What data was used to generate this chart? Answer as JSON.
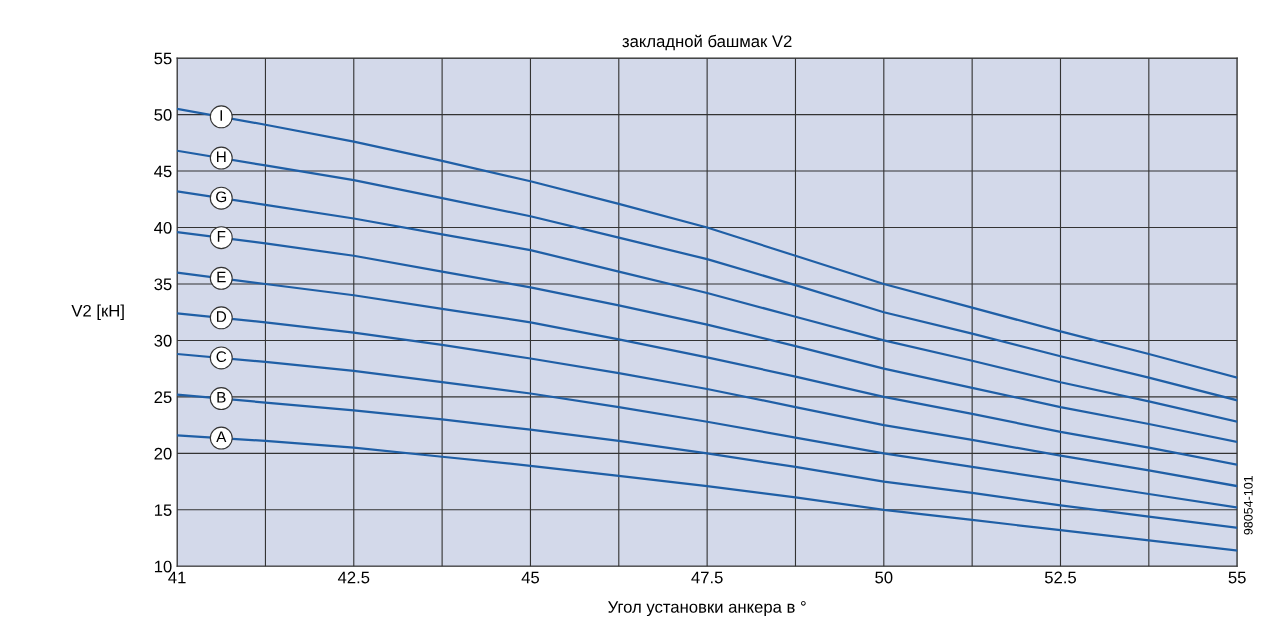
{
  "chart_data": {
    "type": "line",
    "title": "закладной башмак V2",
    "xlabel": "Угол установки анкера в °",
    "ylabel": "V2 [кН]",
    "categories": [
      "41",
      null,
      "42.5",
      null,
      "45",
      null,
      "47.5",
      null,
      "50",
      null,
      "52.5",
      null,
      "55"
    ],
    "ylim": [
      10,
      55
    ],
    "yticks": [
      10,
      15,
      20,
      25,
      30,
      35,
      40,
      45,
      50,
      55
    ],
    "grid": true,
    "legend": false,
    "marker": "none",
    "line_style": "solid",
    "annotations": [
      "98054-101"
    ],
    "series": [
      {
        "name": "A",
        "color": "#1f5fa6",
        "values": [
          21.6,
          21.1,
          20.5,
          19.7,
          18.9,
          18.0,
          17.1,
          16.1,
          15.0,
          14.1,
          13.2,
          12.3,
          11.4
        ]
      },
      {
        "name": "B",
        "color": "#1f5fa6",
        "values": [
          25.2,
          24.5,
          23.8,
          23.0,
          22.1,
          21.1,
          20.0,
          18.8,
          17.5,
          16.5,
          15.4,
          14.4,
          13.4
        ]
      },
      {
        "name": "C",
        "color": "#1f5fa6",
        "values": [
          28.8,
          28.1,
          27.3,
          26.3,
          25.3,
          24.1,
          22.8,
          21.4,
          20.0,
          18.8,
          17.6,
          16.4,
          15.2
        ]
      },
      {
        "name": "D",
        "color": "#1f5fa6",
        "values": [
          32.4,
          31.6,
          30.7,
          29.6,
          28.4,
          27.1,
          25.7,
          24.1,
          22.5,
          21.2,
          19.8,
          18.5,
          17.1
        ]
      },
      {
        "name": "E",
        "color": "#1f5fa6",
        "values": [
          36.0,
          35.0,
          34.0,
          32.8,
          31.6,
          30.1,
          28.5,
          26.8,
          25.0,
          23.5,
          21.9,
          20.5,
          19.0
        ]
      },
      {
        "name": "F",
        "color": "#1f5fa6",
        "values": [
          39.6,
          38.6,
          37.5,
          36.1,
          34.7,
          33.1,
          31.4,
          29.5,
          27.5,
          25.8,
          24.1,
          22.6,
          21.0
        ]
      },
      {
        "name": "G",
        "color": "#1f5fa6",
        "values": [
          43.2,
          42.0,
          40.8,
          39.4,
          38.0,
          36.1,
          34.2,
          32.1,
          30.0,
          28.2,
          26.3,
          24.6,
          22.8
        ]
      },
      {
        "name": "H",
        "color": "#1f5fa6",
        "values": [
          46.8,
          45.5,
          44.2,
          42.6,
          41.0,
          39.1,
          37.2,
          34.9,
          32.5,
          30.6,
          28.6,
          26.7,
          24.7
        ]
      },
      {
        "name": "I",
        "color": "#1f5fa6",
        "values": [
          50.5,
          49.1,
          47.6,
          45.9,
          44.1,
          42.1,
          40.0,
          37.5,
          35.0,
          32.9,
          30.8,
          28.8,
          26.7
        ]
      }
    ]
  }
}
